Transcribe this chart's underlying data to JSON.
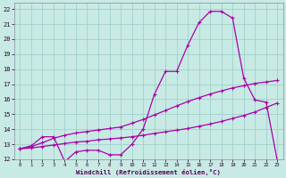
{
  "xlabel": "Windchill (Refroidissement éolien,°C)",
  "background_color": "#c8eae4",
  "grid_color": "#a0d0cc",
  "line_color": "#aa00aa",
  "xlim": [
    -0.5,
    23.5
  ],
  "ylim": [
    12,
    22.4
  ],
  "yticks": [
    12,
    13,
    14,
    15,
    16,
    17,
    18,
    19,
    20,
    21,
    22
  ],
  "xticks": [
    0,
    1,
    2,
    3,
    4,
    5,
    6,
    7,
    8,
    9,
    10,
    11,
    12,
    13,
    14,
    15,
    16,
    17,
    18,
    19,
    20,
    21,
    22,
    23
  ],
  "series1_x": [
    0,
    1,
    2,
    3,
    4,
    5,
    6,
    7,
    8,
    9,
    10,
    11,
    12,
    13,
    14,
    15,
    16,
    17,
    18,
    19,
    20,
    21,
    22,
    23
  ],
  "series1_y": [
    12.7,
    12.9,
    13.5,
    13.5,
    11.85,
    12.5,
    12.6,
    12.6,
    12.3,
    12.3,
    13.0,
    14.0,
    16.3,
    17.85,
    17.85,
    19.6,
    21.1,
    21.85,
    21.85,
    21.4,
    17.4,
    15.95,
    15.8,
    11.9
  ],
  "series2_x": [
    0,
    1,
    2,
    3,
    4,
    5,
    6,
    7,
    8,
    9,
    10,
    11,
    12,
    13,
    14,
    15,
    16,
    17,
    18,
    19,
    20,
    21,
    22,
    23
  ],
  "series2_y": [
    12.7,
    12.85,
    13.1,
    13.4,
    13.6,
    13.75,
    13.85,
    13.95,
    14.05,
    14.15,
    14.4,
    14.65,
    14.95,
    15.25,
    15.55,
    15.85,
    16.1,
    16.35,
    16.55,
    16.75,
    16.9,
    17.05,
    17.15,
    17.25
  ],
  "series3_x": [
    0,
    1,
    2,
    3,
    4,
    5,
    6,
    7,
    8,
    9,
    10,
    11,
    12,
    13,
    14,
    15,
    16,
    17,
    18,
    19,
    20,
    21,
    22,
    23
  ],
  "series3_y": [
    12.7,
    12.75,
    12.85,
    12.95,
    13.05,
    13.15,
    13.2,
    13.3,
    13.35,
    13.42,
    13.5,
    13.6,
    13.72,
    13.83,
    13.94,
    14.05,
    14.2,
    14.35,
    14.52,
    14.72,
    14.92,
    15.15,
    15.45,
    15.75
  ]
}
